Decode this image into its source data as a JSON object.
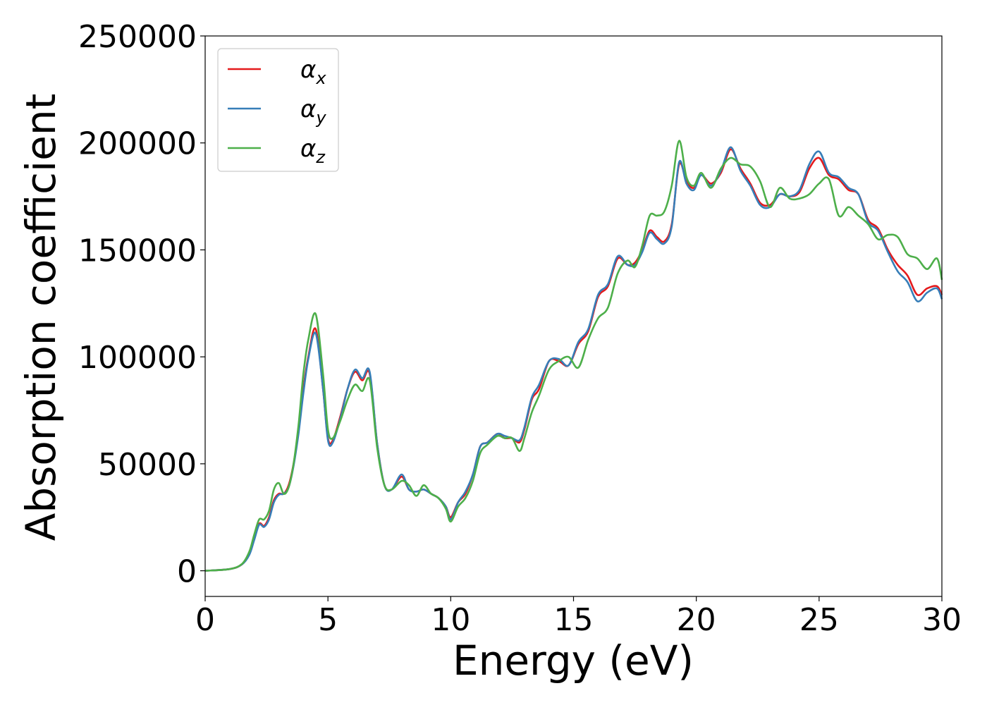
{
  "chart_data": {
    "type": "line",
    "xlabel": "Energy (eV)",
    "ylabel": "Absorption coefficient",
    "xlim": [
      0,
      30
    ],
    "ylim": [
      -12000,
      250000
    ],
    "xticks": [
      0,
      5,
      10,
      15,
      20,
      25,
      30
    ],
    "yticks": [
      0,
      50000,
      100000,
      150000,
      200000,
      250000
    ],
    "grid": false,
    "legend_position": "top-left",
    "series": [
      {
        "name": "α_x",
        "symbol": "α",
        "subscript": "x",
        "color": "#e41a1c",
        "x": [
          0,
          1,
          1.5,
          1.8,
          2.0,
          2.2,
          2.4,
          2.6,
          2.8,
          3.0,
          3.2,
          3.4,
          3.6,
          3.8,
          4.0,
          4.2,
          4.5,
          4.8,
          5.0,
          5.2,
          5.5,
          5.8,
          6.1,
          6.4,
          6.7,
          7.0,
          7.3,
          7.6,
          8.0,
          8.3,
          8.6,
          8.9,
          9.2,
          9.5,
          9.8,
          10.0,
          10.3,
          10.6,
          10.9,
          11.2,
          11.5,
          11.9,
          12.2,
          12.5,
          12.8,
          13.0,
          13.3,
          13.6,
          14.0,
          14.4,
          14.8,
          15.2,
          15.6,
          16.0,
          16.4,
          16.8,
          17.2,
          17.5,
          17.8,
          18.1,
          18.4,
          18.7,
          19.0,
          19.3,
          19.6,
          19.9,
          20.2,
          20.6,
          21.0,
          21.4,
          21.8,
          22.2,
          22.6,
          23.0,
          23.4,
          23.8,
          24.2,
          24.6,
          25.0,
          25.4,
          25.8,
          26.2,
          26.6,
          27.0,
          27.4,
          27.8,
          28.2,
          28.6,
          29.0,
          29.4,
          29.8,
          30.0
        ],
        "y": [
          0,
          800,
          3000,
          8000,
          15000,
          22000,
          21000,
          25000,
          33000,
          36000,
          36000,
          40000,
          50000,
          65000,
          85000,
          100000,
          113000,
          85000,
          62000,
          61000,
          72000,
          85000,
          93000,
          89000,
          92000,
          60000,
          40000,
          38000,
          44000,
          38000,
          37000,
          38000,
          36000,
          34000,
          30000,
          25000,
          32000,
          36000,
          45000,
          58000,
          60000,
          64000,
          62000,
          62000,
          60000,
          66000,
          80000,
          85000,
          98000,
          98000,
          96000,
          106000,
          112000,
          128000,
          133000,
          146000,
          143000,
          144000,
          150000,
          159000,
          156000,
          154000,
          162000,
          190000,
          182000,
          179000,
          185000,
          181000,
          186000,
          197000,
          188000,
          181000,
          172000,
          171000,
          176000,
          175000,
          177000,
          188000,
          193000,
          185000,
          183000,
          178000,
          176000,
          164000,
          160000,
          150000,
          143000,
          138000,
          129000,
          132000,
          133000,
          129000
        ]
      },
      {
        "name": "α_y",
        "symbol": "α",
        "subscript": "y",
        "color": "#377eb8",
        "x": [
          0,
          1,
          1.5,
          1.8,
          2.0,
          2.2,
          2.4,
          2.6,
          2.8,
          3.0,
          3.2,
          3.4,
          3.6,
          3.8,
          4.0,
          4.2,
          4.5,
          4.8,
          5.0,
          5.2,
          5.5,
          5.8,
          6.1,
          6.4,
          6.7,
          7.0,
          7.3,
          7.6,
          8.0,
          8.3,
          8.6,
          8.9,
          9.2,
          9.5,
          9.8,
          10.0,
          10.3,
          10.6,
          10.9,
          11.2,
          11.5,
          11.9,
          12.2,
          12.5,
          12.8,
          13.0,
          13.3,
          13.6,
          14.0,
          14.4,
          14.8,
          15.2,
          15.6,
          16.0,
          16.4,
          16.8,
          17.2,
          17.5,
          17.8,
          18.1,
          18.4,
          18.7,
          19.0,
          19.3,
          19.6,
          19.9,
          20.2,
          20.6,
          21.0,
          21.4,
          21.8,
          22.2,
          22.6,
          23.0,
          23.4,
          23.8,
          24.2,
          24.6,
          25.0,
          25.4,
          25.8,
          26.2,
          26.6,
          27.0,
          27.4,
          27.8,
          28.2,
          28.6,
          29.0,
          29.4,
          29.8,
          30.0
        ],
        "y": [
          0,
          800,
          3000,
          7500,
          14500,
          21500,
          20500,
          24000,
          32000,
          35500,
          36000,
          39000,
          49000,
          64000,
          83000,
          99000,
          111000,
          85000,
          61000,
          60000,
          71000,
          85000,
          94000,
          90000,
          93000,
          60000,
          40000,
          38000,
          45000,
          38000,
          37000,
          38000,
          36000,
          34000,
          30000,
          24000,
          32000,
          37000,
          45000,
          58000,
          60000,
          64000,
          63000,
          62000,
          61000,
          67000,
          81000,
          87000,
          98000,
          99000,
          96000,
          107000,
          113000,
          129000,
          134000,
          147000,
          143000,
          143000,
          149000,
          158000,
          155000,
          153000,
          161000,
          191000,
          181000,
          178000,
          185000,
          180000,
          187000,
          198000,
          187000,
          180000,
          171000,
          170000,
          176000,
          175000,
          178000,
          190000,
          196000,
          186000,
          184000,
          179000,
          176000,
          163000,
          159000,
          149000,
          140000,
          135000,
          126000,
          130000,
          132000,
          127000
        ]
      },
      {
        "name": "α_z",
        "symbol": "α",
        "subscript": "z",
        "color": "#4daf4a",
        "x": [
          0,
          1,
          1.5,
          1.8,
          2.0,
          2.2,
          2.4,
          2.6,
          2.8,
          3.0,
          3.2,
          3.4,
          3.6,
          3.8,
          4.0,
          4.2,
          4.5,
          4.8,
          5.0,
          5.2,
          5.5,
          5.8,
          6.1,
          6.4,
          6.7,
          7.0,
          7.3,
          7.6,
          8.0,
          8.3,
          8.6,
          8.9,
          9.2,
          9.5,
          9.8,
          10.0,
          10.3,
          10.6,
          10.9,
          11.2,
          11.5,
          11.9,
          12.2,
          12.5,
          12.8,
          13.0,
          13.3,
          13.6,
          14.0,
          14.4,
          14.8,
          15.2,
          15.6,
          16.0,
          16.4,
          16.8,
          17.2,
          17.5,
          17.8,
          18.1,
          18.4,
          18.7,
          19.0,
          19.3,
          19.6,
          19.9,
          20.2,
          20.6,
          21.0,
          21.4,
          21.8,
          22.2,
          22.6,
          23.0,
          23.4,
          23.8,
          24.2,
          24.6,
          25.0,
          25.4,
          25.8,
          26.2,
          26.6,
          27.0,
          27.4,
          27.8,
          28.2,
          28.6,
          29.0,
          29.4,
          29.8,
          30.0
        ],
        "y": [
          0,
          800,
          3200,
          9000,
          17000,
          24000,
          24000,
          28000,
          38000,
          41000,
          36000,
          39000,
          50000,
          68000,
          92000,
          108000,
          120000,
          92000,
          66000,
          62000,
          70000,
          80000,
          87000,
          84000,
          89000,
          58000,
          40000,
          38000,
          42000,
          40000,
          35000,
          40000,
          36000,
          34000,
          29000,
          23000,
          30000,
          34000,
          42000,
          55000,
          59000,
          63000,
          62000,
          62000,
          56000,
          62000,
          74000,
          82000,
          94000,
          98000,
          100000,
          95000,
          108000,
          118000,
          123000,
          139000,
          145000,
          142000,
          152000,
          166000,
          166000,
          168000,
          180000,
          201000,
          184000,
          180000,
          186000,
          179000,
          188000,
          193000,
          190000,
          189000,
          182000,
          170000,
          179000,
          174000,
          174000,
          176000,
          181000,
          183000,
          166000,
          170000,
          166000,
          162000,
          155000,
          157000,
          156000,
          148000,
          146000,
          141000,
          146000,
          136000
        ]
      }
    ]
  }
}
